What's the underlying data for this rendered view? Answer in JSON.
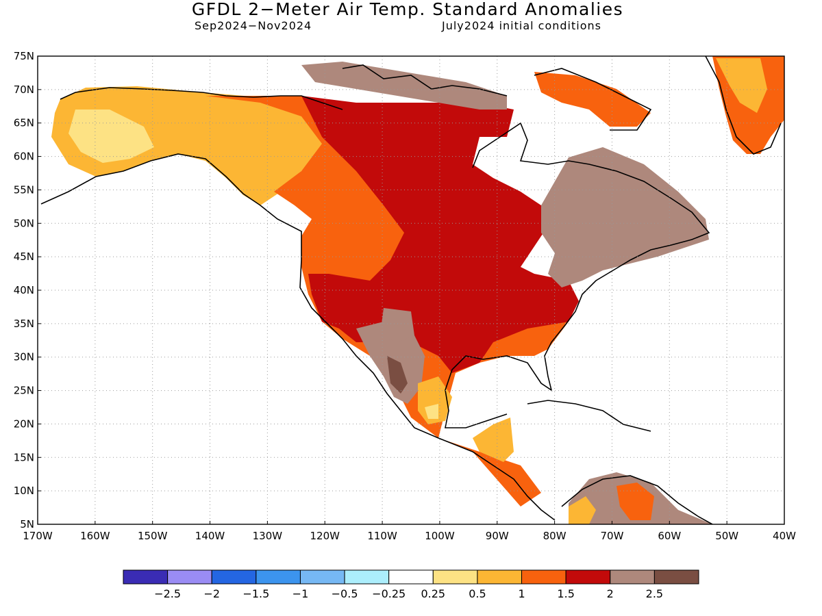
{
  "title": "GFDL 2−Meter Air Temp. Standard Anomalies",
  "subtitle_left": "Sep2024−Nov2024",
  "subtitle_right": "July2024 initial conditions",
  "map": {
    "lon_range": [
      -170,
      -40
    ],
    "lat_range": [
      5,
      75
    ],
    "grid": "dotted",
    "lat_ticks": [
      "75N",
      "70N",
      "65N",
      "60N",
      "55N",
      "50N",
      "45N",
      "40N",
      "35N",
      "30N",
      "25N",
      "20N",
      "15N",
      "10N",
      "5N"
    ],
    "lon_ticks": [
      "170W",
      "160W",
      "150W",
      "140W",
      "130W",
      "120W",
      "110W",
      "100W",
      "90W",
      "80W",
      "70W",
      "60W",
      "50W",
      "40W"
    ]
  },
  "colorbar": {
    "colors": [
      "#3a2cb4",
      "#9a8cf4",
      "#2466e2",
      "#3c94ee",
      "#76b8f4",
      "#aceefc",
      "#ffffff",
      "#fde284",
      "#fcb634",
      "#f8620e",
      "#c20a0a",
      "#ae887c",
      "#7a4e42"
    ],
    "labels": [
      "−2.5",
      "−2",
      "−1.5",
      "−1",
      "−0.5",
      "−0.25",
      "0.25",
      "0.5",
      "1",
      "1.5",
      "2",
      "2.5"
    ]
  }
}
